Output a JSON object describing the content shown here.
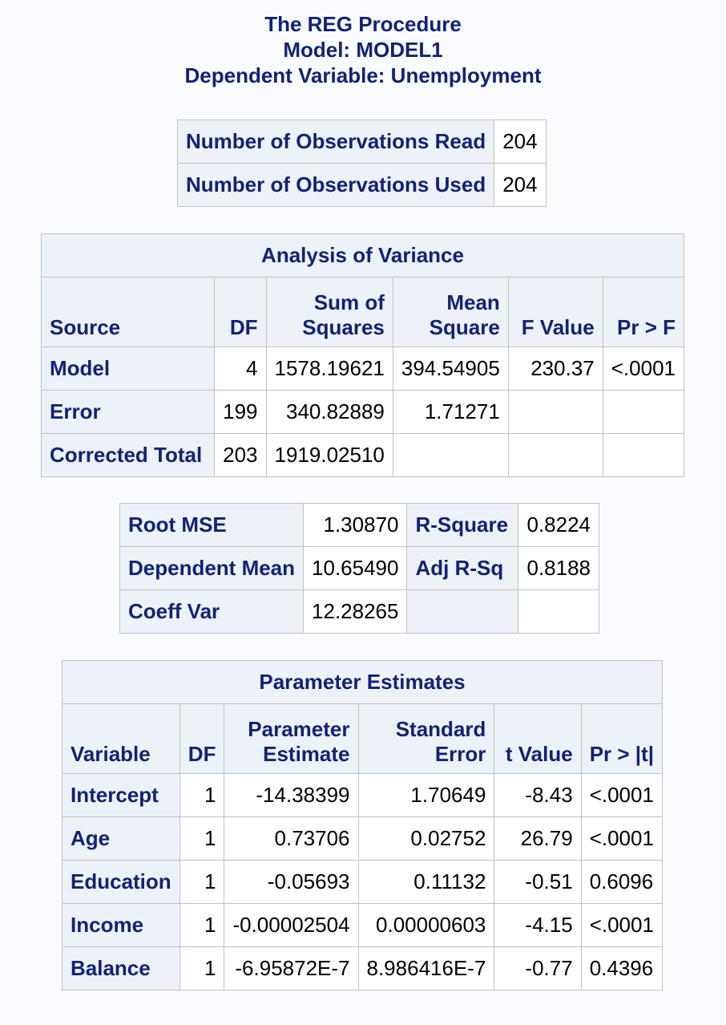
{
  "titles": {
    "line1": "The REG Procedure",
    "line2": "Model: MODEL1",
    "line3": "Dependent Variable: Unemployment"
  },
  "observations": [
    {
      "label": "Number of Observations Read",
      "value": "204"
    },
    {
      "label": "Number of Observations Used",
      "value": "204"
    }
  ],
  "anova": {
    "caption": "Analysis of Variance",
    "headers": {
      "source": "Source",
      "df": "DF",
      "ss_line1": "Sum of",
      "ss_line2": "Squares",
      "ms_line1": "Mean",
      "ms_line2": "Square",
      "f": "F Value",
      "p": "Pr > F"
    },
    "rows": [
      {
        "source": "Model",
        "df": "4",
        "ss": "1578.19621",
        "ms": "394.54905",
        "f": "230.37",
        "p": "<.0001"
      },
      {
        "source": "Error",
        "df": "199",
        "ss": "340.82889",
        "ms": "1.71271",
        "f": "",
        "p": ""
      },
      {
        "source": "Corrected Total",
        "df": "203",
        "ss": "1919.02510",
        "ms": "",
        "f": "",
        "p": ""
      }
    ]
  },
  "fit": [
    {
      "label1": "Root MSE",
      "value1": "1.30870",
      "label2": "R-Square",
      "value2": "0.8224"
    },
    {
      "label1": "Dependent Mean",
      "value1": "10.65490",
      "label2": "Adj R-Sq",
      "value2": "0.8188"
    },
    {
      "label1": "Coeff Var",
      "value1": "12.28265",
      "label2": "",
      "value2": ""
    }
  ],
  "params": {
    "caption": "Parameter Estimates",
    "headers": {
      "variable": "Variable",
      "df": "DF",
      "est_line1": "Parameter",
      "est_line2": "Estimate",
      "se_line1": "Standard",
      "se_line2": "Error",
      "t": "t Value",
      "p": "Pr > |t|"
    },
    "rows": [
      {
        "variable": "Intercept",
        "df": "1",
        "estimate": "-14.38399",
        "se": "1.70649",
        "t": "-8.43",
        "p": "<.0001"
      },
      {
        "variable": "Age",
        "df": "1",
        "estimate": "0.73706",
        "se": "0.02752",
        "t": "26.79",
        "p": "<.0001"
      },
      {
        "variable": "Education",
        "df": "1",
        "estimate": "-0.05693",
        "se": "0.11132",
        "t": "-0.51",
        "p": "0.6096"
      },
      {
        "variable": "Income",
        "df": "1",
        "estimate": "-0.00002504",
        "se": "0.00000603",
        "t": "-4.15",
        "p": "<.0001"
      },
      {
        "variable": "Balance",
        "df": "1",
        "estimate": "-6.95872E-7",
        "se": "8.986416E-7",
        "t": "-0.77",
        "p": "0.4396"
      }
    ]
  }
}
